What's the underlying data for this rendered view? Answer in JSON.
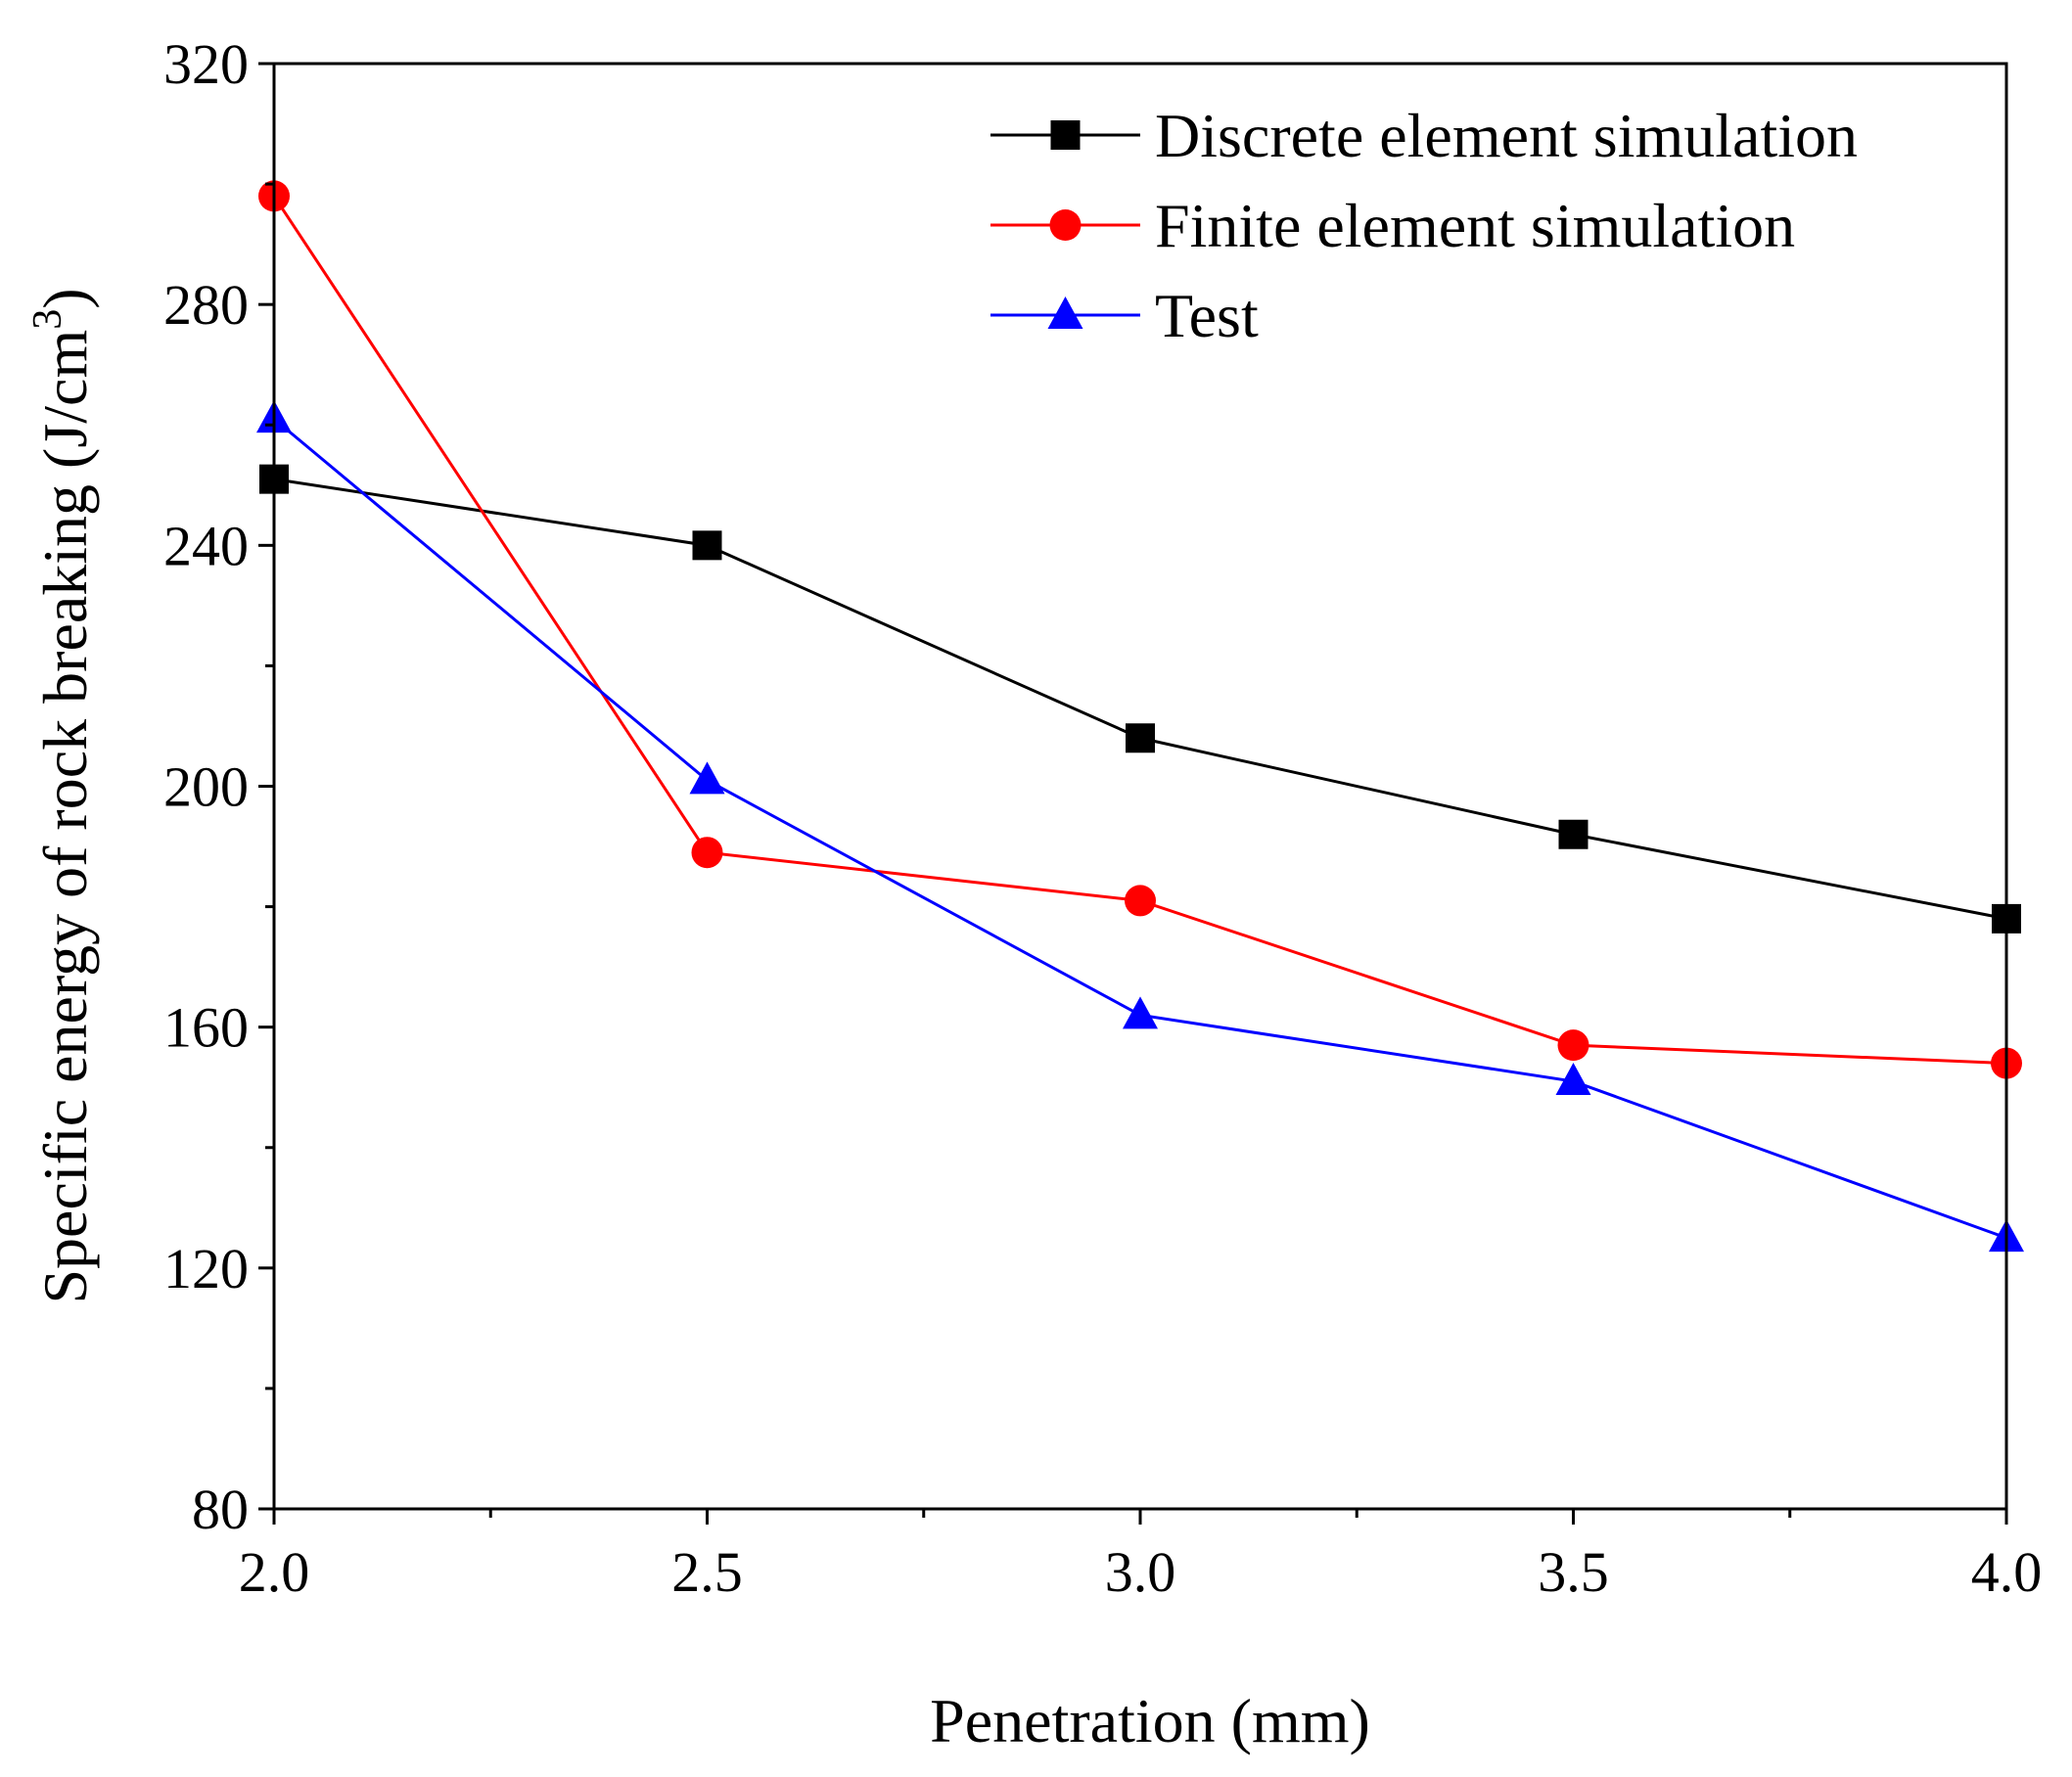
{
  "chart_data": {
    "type": "line",
    "title": "",
    "xlabel": "Penetration (mm)",
    "ylabel": "Specific energy of rock breaking (J/cm",
    "ylabel_superscript": "3",
    "ylabel_suffix": ")",
    "xlim": [
      2.0,
      4.0
    ],
    "ylim": [
      80,
      320
    ],
    "x": [
      2.0,
      2.5,
      3.0,
      3.5,
      4.0
    ],
    "x_tick_labels": [
      "2.0",
      "2.5",
      "3.0",
      "3.5",
      "4.0"
    ],
    "y_ticks": [
      80,
      120,
      160,
      200,
      240,
      280,
      320
    ],
    "y_tick_labels": [
      "80",
      "120",
      "160",
      "200",
      "240",
      "280",
      "320"
    ],
    "grid": false,
    "legend_position": "top-right",
    "series": [
      {
        "name": "Discrete element simulation",
        "color": "#000000",
        "marker": "square",
        "values": [
          251,
          240,
          208,
          192,
          178
        ]
      },
      {
        "name": "Finite element simulation",
        "color": "#ff0000",
        "marker": "circle",
        "values": [
          298,
          189,
          181,
          157,
          154
        ]
      },
      {
        "name": "Test",
        "color": "#0000ff",
        "marker": "triangle",
        "values": [
          261,
          201,
          162,
          151,
          125
        ]
      }
    ]
  }
}
